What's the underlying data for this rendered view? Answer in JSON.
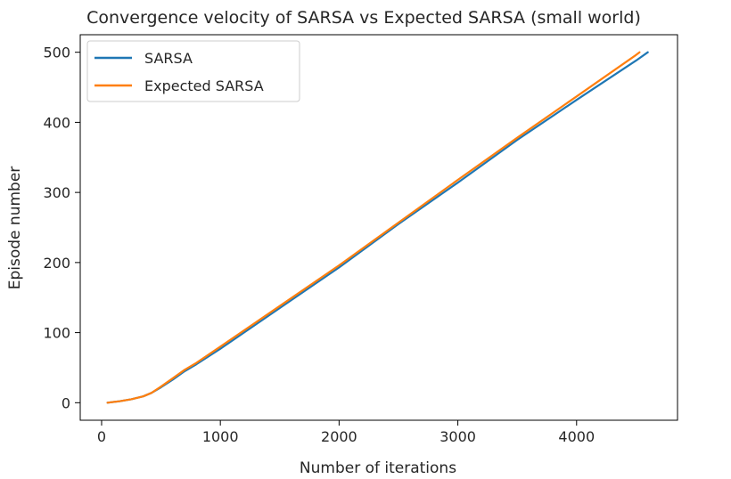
{
  "chart_data": {
    "type": "line",
    "title": "Convergence velocity of SARSA vs Expected SARSA (small world)",
    "xlabel": "Number of iterations",
    "ylabel": "Episode number",
    "xlim": [
      -180,
      4850
    ],
    "ylim": [
      -25,
      525
    ],
    "xticks": [
      0,
      1000,
      2000,
      3000,
      4000
    ],
    "yticks": [
      0,
      100,
      200,
      300,
      400,
      500
    ],
    "xtick_labels": [
      "0",
      "1000",
      "2000",
      "3000",
      "4000"
    ],
    "ytick_labels": [
      "0",
      "100",
      "200",
      "300",
      "400",
      "500"
    ],
    "grid": false,
    "legend_position": "upper-left",
    "series": [
      {
        "name": "SARSA",
        "color": "#1f77b4",
        "x": [
          50,
          150,
          250,
          350,
          420,
          500,
          600,
          700,
          800,
          1000,
          1500,
          2000,
          2500,
          3000,
          3500,
          4000,
          4500,
          4600
        ],
        "y": [
          0,
          2,
          5,
          9,
          14,
          22,
          33,
          45,
          55,
          77,
          135,
          193,
          255,
          314,
          375,
          432,
          488,
          500
        ]
      },
      {
        "name": "Expected SARSA",
        "color": "#ff7f0e",
        "x": [
          50,
          150,
          250,
          350,
          420,
          500,
          600,
          700,
          800,
          1000,
          1500,
          2000,
          2500,
          3000,
          3500,
          4000,
          4500,
          4530
        ],
        "y": [
          0,
          2,
          5,
          9,
          14,
          23,
          35,
          47,
          57,
          80,
          138,
          196,
          257,
          318,
          378,
          437,
          496,
          500
        ]
      }
    ]
  }
}
